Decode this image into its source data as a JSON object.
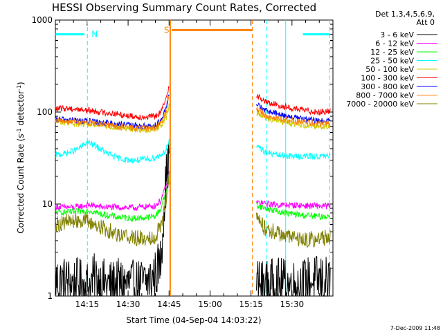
{
  "chart_data": {
    "type": "line",
    "title": "HESSI Observing Summary Count Rates, Corrected",
    "xlabel": "Start Time (04-Sep-04 14:03:22)",
    "ylabel": "Corrected Count Rate (s⁻¹ detector⁻¹)",
    "ylabel_base": "Corrected Count Rate (s",
    "ylabel_mid": " detector",
    "ylabel_end": ")",
    "ylabel_sup1": "-1",
    "ylabel_sup2": "-1",
    "footer": "7-Dec-2009 11:48",
    "y_scale": "log",
    "ylim": [
      1,
      1000
    ],
    "xlim": [
      "14:03:22",
      "15:45:00"
    ],
    "y_ticks": [
      {
        "value": 1,
        "label": "1"
      },
      {
        "value": 10,
        "label": "10"
      },
      {
        "value": 100,
        "label": "100"
      },
      {
        "value": 1000,
        "label": "1000"
      }
    ],
    "x_ticks": [
      {
        "minutes": 15,
        "label": "14:15"
      },
      {
        "minutes": 30,
        "label": "14:30"
      },
      {
        "minutes": 45,
        "label": "14:45"
      },
      {
        "minutes": 60,
        "label": "15:00"
      },
      {
        "minutes": 75,
        "label": "15:15"
      },
      {
        "minutes": 90,
        "label": "15:30"
      }
    ],
    "legend_header": [
      "Det 1,3,4,5,6,9,",
      "Att 0"
    ],
    "series": [
      {
        "name": "3 - 6 keV",
        "color": "#000000",
        "segments": [
          {
            "x": [
              3.4,
              10,
              16,
              18,
              20,
              24,
              28,
              32,
              36,
              38,
              40,
              42,
              43,
              44,
              45
            ],
            "y": [
              1.5,
              1.4,
              1.3,
              1.6,
              1.4,
              1.3,
              1.4,
              1.3,
              1.4,
              1.5,
              1.7,
              2.5,
              8,
              20,
              30
            ]
          },
          {
            "x": [
              77,
              80,
              85,
              90,
              95,
              100,
              104
            ],
            "y": [
              1.4,
              1.3,
              1.4,
              1.3,
              1.4,
              1.5,
              1.4
            ]
          }
        ]
      },
      {
        "name": "6 - 12 keV",
        "color": "#ff00ff",
        "segments": [
          {
            "x": [
              3.4,
              10,
              16,
              20,
              26,
              32,
              36,
              40,
              42,
              44,
              45
            ],
            "y": [
              9.3,
              9.2,
              9.8,
              9.3,
              9.2,
              9.1,
              9.3,
              9.6,
              11,
              16,
              22
            ]
          },
          {
            "x": [
              77,
              80,
              85,
              90,
              95,
              100,
              104
            ],
            "y": [
              10.4,
              10.1,
              9.8,
              9.7,
              9.6,
              9.5,
              9.5
            ]
          }
        ]
      },
      {
        "name": "12 - 25 keV",
        "color": "#00ff00",
        "segments": [
          {
            "x": [
              3.4,
              10,
              16,
              20,
              26,
              32,
              36,
              40,
              42,
              44,
              45
            ],
            "y": [
              8.1,
              8.2,
              8.5,
              7.8,
              7.2,
              7.0,
              7.1,
              7.4,
              9,
              14,
              21
            ]
          },
          {
            "x": [
              77,
              80,
              85,
              90,
              95,
              100,
              104
            ],
            "y": [
              9.8,
              9.0,
              8.3,
              7.8,
              7.5,
              7.3,
              7.4
            ]
          }
        ]
      },
      {
        "name": "25 - 50 keV",
        "color": "#00ffff",
        "segments": [
          {
            "x": [
              3.4,
              8,
              12,
              15,
              18,
              22,
              26,
              30,
              34,
              38,
              41,
              43,
              44,
              45
            ],
            "y": [
              34,
              36,
              40,
              47,
              43,
              36,
              32,
              30,
              30,
              31,
              33,
              36,
              40,
              48
            ]
          },
          {
            "x": [
              77,
              78,
              80,
              85,
              90,
              95,
              100,
              104
            ],
            "y": [
              39,
              42,
              37,
              34,
              33,
              33,
              33,
              33
            ]
          }
        ]
      },
      {
        "name": "50 - 100 keV",
        "color": "#cccc00",
        "segments": [
          {
            "x": [
              3.4,
              8,
              12,
              16,
              20,
              24,
              28,
              32,
              36,
              40,
              42,
              44,
              45
            ],
            "y": [
              78,
              77,
              74,
              73,
              71,
              69,
              67,
              65,
              64,
              66,
              72,
              88,
              115
            ]
          },
          {
            "x": [
              77,
              80,
              85,
              90,
              95,
              100,
              104
            ],
            "y": [
              100,
              88,
              80,
              75,
              72,
              70,
              70
            ]
          }
        ]
      },
      {
        "name": "100 - 300 keV",
        "color": "#ff0000",
        "segments": [
          {
            "x": [
              3.4,
              8,
              12,
              16,
              20,
              24,
              28,
              32,
              36,
              40,
              42,
              44,
              45
            ],
            "y": [
              108,
              110,
              107,
              104,
              100,
              97,
              93,
              90,
              88,
              90,
              100,
              140,
              200
            ]
          },
          {
            "x": [
              77,
              78,
              80,
              85,
              90,
              95,
              100,
              104
            ],
            "y": [
              155,
              145,
              130,
              118,
              110,
              104,
              100,
              102
            ]
          }
        ]
      },
      {
        "name": "300 - 800 keV",
        "color": "#0000ff",
        "segments": [
          {
            "x": [
              3.4,
              8,
              12,
              16,
              20,
              24,
              28,
              32,
              36,
              40,
              42,
              44,
              45
            ],
            "y": [
              82,
              83,
              81,
              79,
              77,
              75,
              73,
              71,
              70,
              72,
              80,
              110,
              160
            ]
          },
          {
            "x": [
              77,
              78,
              80,
              85,
              90,
              95,
              100,
              104
            ],
            "y": [
              125,
              118,
              104,
              95,
              88,
              83,
              80,
              79
            ]
          }
        ]
      },
      {
        "name": "800 - 7000 keV",
        "color": "#ff8000",
        "segments": [
          {
            "x": [
              3.4,
              8,
              12,
              16,
              20,
              24,
              28,
              32,
              36,
              40,
              42,
              44,
              45
            ],
            "y": [
              80,
              80,
              78,
              76,
              74,
              71,
              69,
              67,
              66,
              68,
              75,
              100,
              150
            ]
          },
          {
            "x": [
              77,
              78,
              80,
              85,
              90,
              95,
              100,
              104
            ],
            "y": [
              110,
              105,
              93,
              85,
              80,
              77,
              75,
              75
            ]
          }
        ]
      },
      {
        "name": "7000 - 20000 keV",
        "color": "#808000",
        "segments": [
          {
            "x": [
              3.4,
              8,
              12,
              16,
              20,
              24,
              28,
              32,
              36,
              40,
              42,
              44,
              45
            ],
            "y": [
              6.0,
              6.4,
              6.8,
              6.3,
              5.6,
              5.0,
              4.6,
              4.3,
              4.2,
              4.5,
              6.0,
              12,
              18
            ]
          },
          {
            "x": [
              77,
              78,
              80,
              85,
              90,
              95,
              100,
              104
            ],
            "y": [
              7.5,
              6.5,
              5.5,
              4.8,
              4.3,
              4.1,
              4.2,
              4.5
            ]
          }
        ]
      }
    ],
    "flags": [
      {
        "label": "N",
        "color": "#00ffff",
        "y": 700,
        "bars": [
          [
            3.4,
            14.0
          ],
          [
            94.0,
            104.0
          ]
        ],
        "dashed_lines": [
          15.1,
          103.8
        ]
      },
      {
        "label": "S",
        "color": "#ff8000",
        "y": 780,
        "bars": [
          [
            46.0,
            75.5
          ]
        ],
        "solid_lines": [
          45.4
        ],
        "dashed_lines": [
          75.5
        ]
      }
    ],
    "vertical_lines": [
      {
        "x": 80.6,
        "color": "#00ffff",
        "style": "dashed"
      },
      {
        "x": 87.7,
        "color": "#00ffff",
        "style": "solid"
      }
    ]
  }
}
